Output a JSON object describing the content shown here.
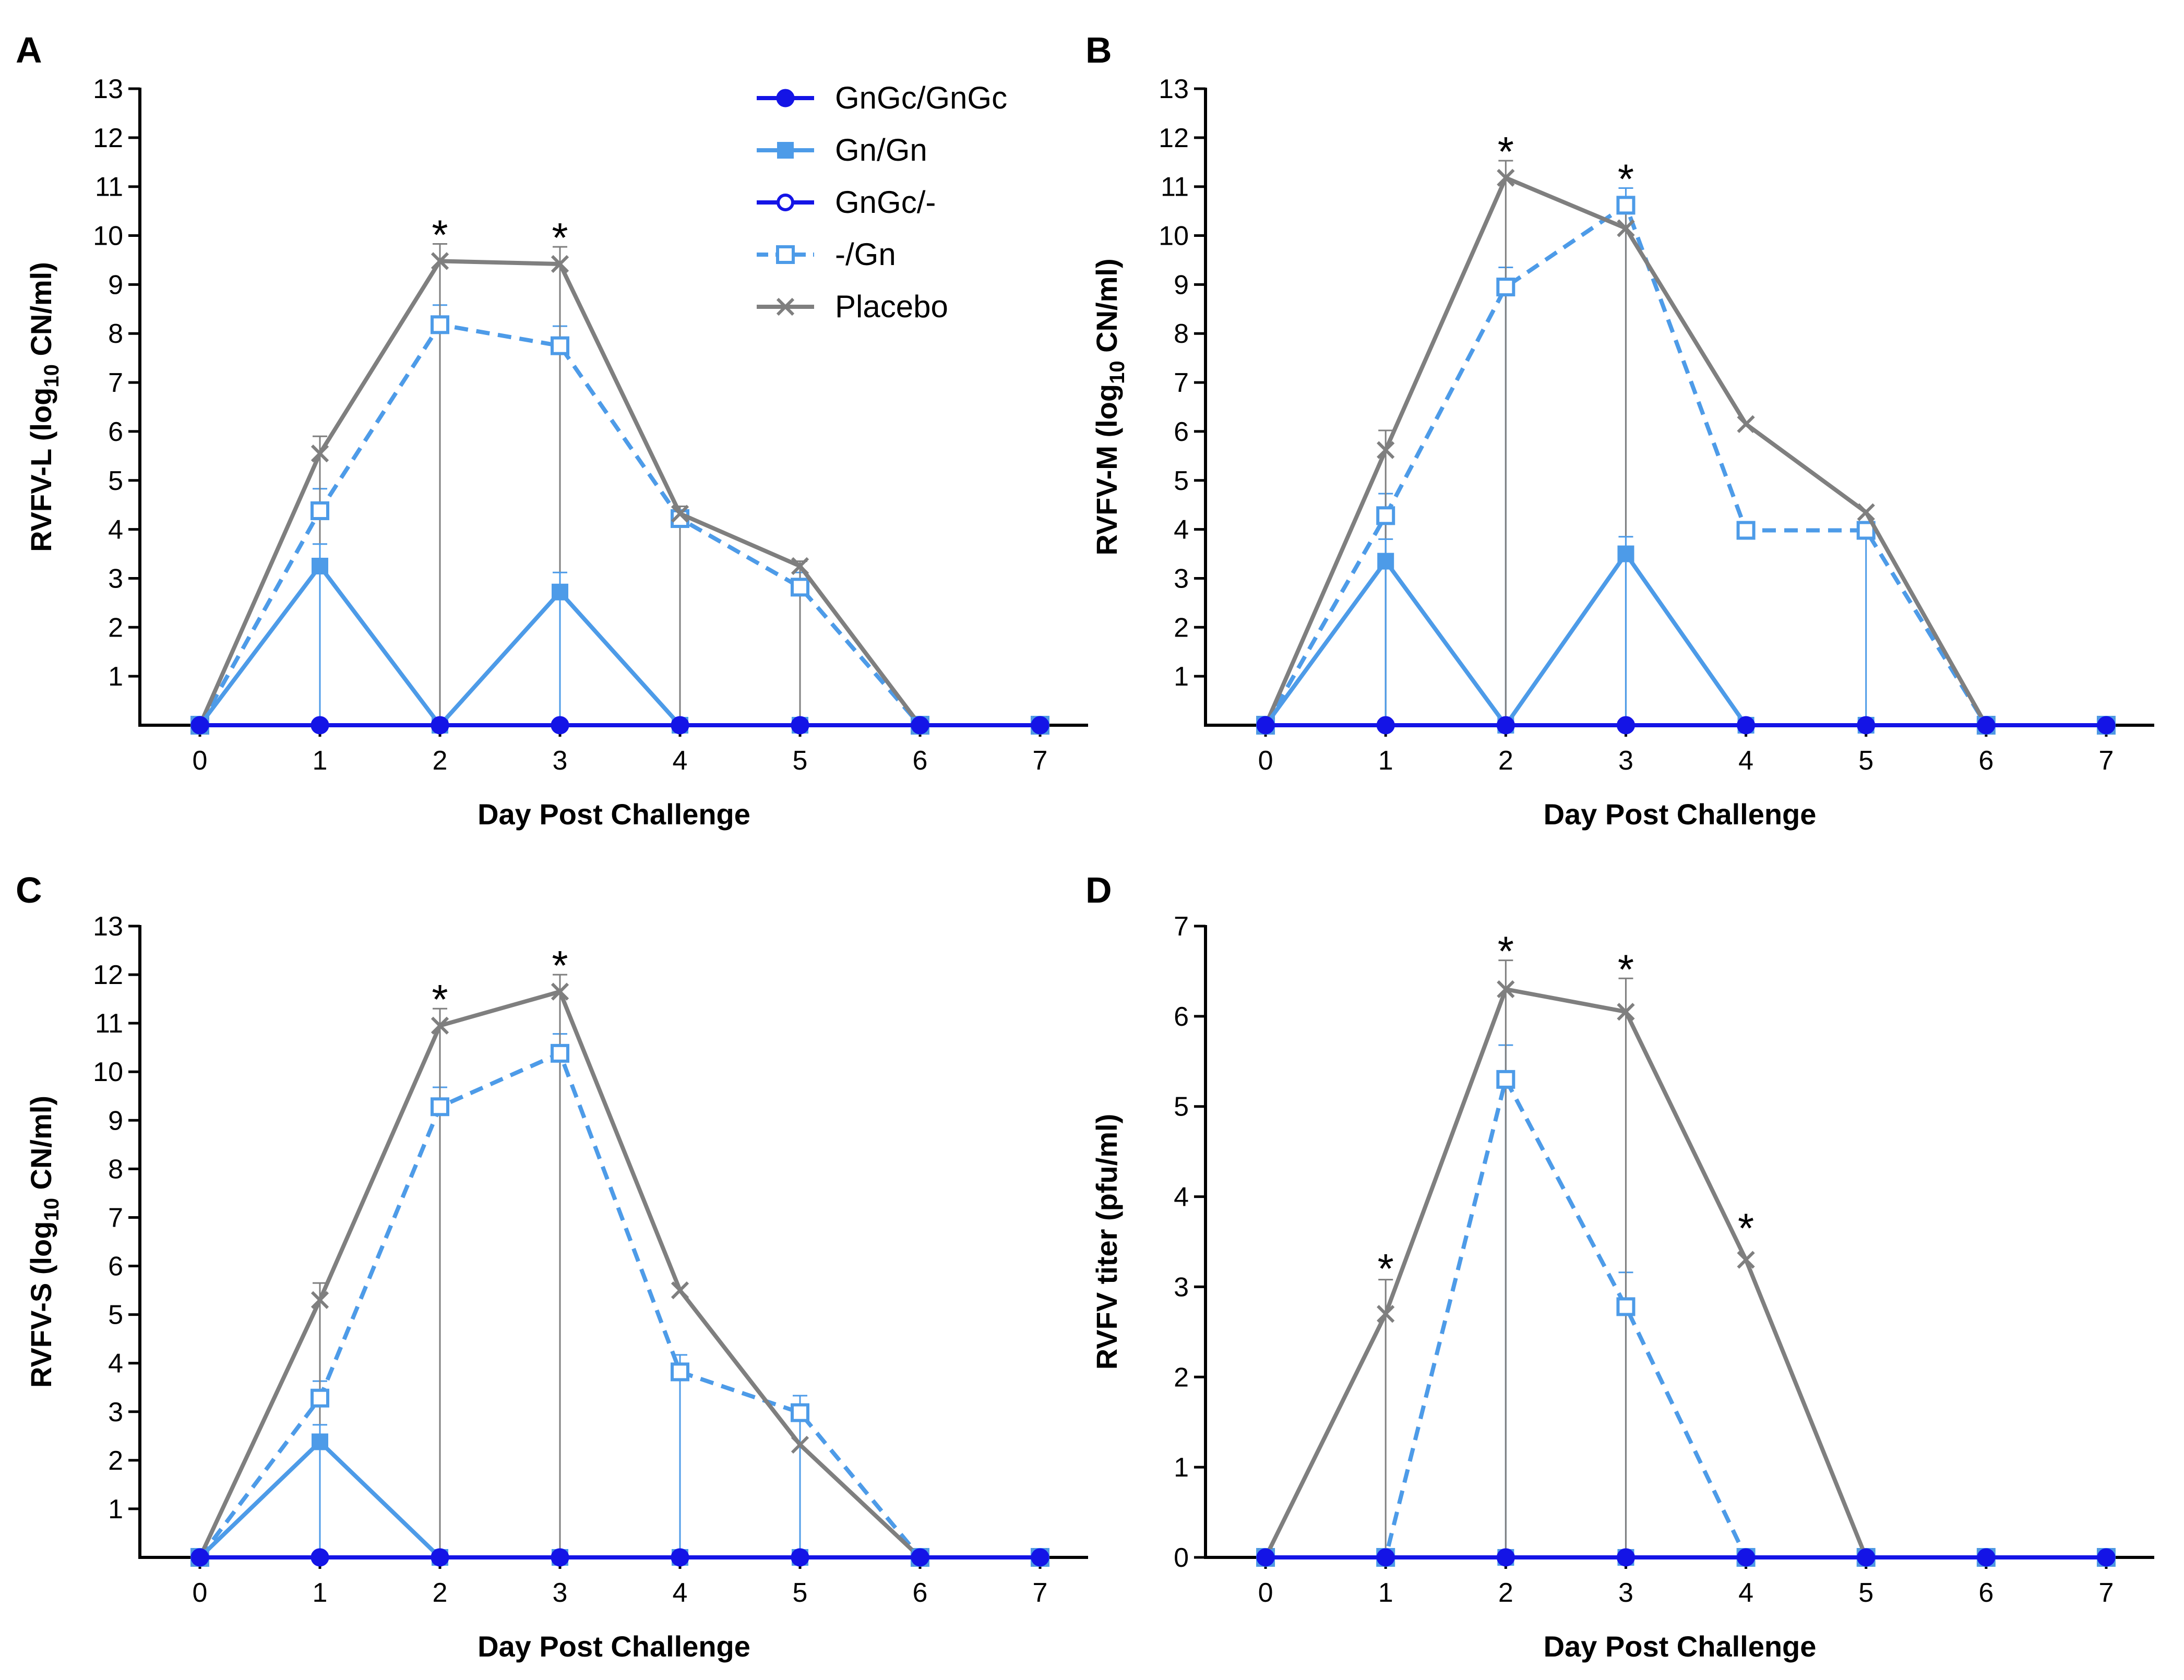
{
  "legend": [
    {
      "name": "GnGc/GnGc",
      "color": "#1414e6",
      "marker": "filled-circle",
      "dash": false
    },
    {
      "name": "Gn/Gn",
      "color": "#4d9be8",
      "marker": "filled-square",
      "dash": false
    },
    {
      "name": "GnGc/-",
      "color": "#1414e6",
      "marker": "open-circle",
      "dash": false
    },
    {
      "name": "-/Gn",
      "color": "#4d9be8",
      "marker": "open-square",
      "dash": true
    },
    {
      "name": "Placebo",
      "color": "#7f7f7f",
      "marker": "cross",
      "dash": false
    }
  ],
  "chart_data": [
    {
      "type": "line",
      "panel": "A",
      "xlabel": "Day Post Challenge",
      "ylabel_main": "RVFV-L (log",
      "ylabel_sub": "10",
      "ylabel_end": " CN/ml)",
      "x": [
        0,
        1,
        2,
        3,
        4,
        5,
        6,
        7
      ],
      "xlim": [
        -0.5,
        7.4
      ],
      "ylim": [
        0,
        13
      ],
      "yticks": [
        1,
        2,
        3,
        4,
        5,
        6,
        7,
        8,
        9,
        10,
        11,
        12,
        13
      ],
      "series": [
        {
          "name": "GnGc/GnGc",
          "values": [
            0,
            0,
            0,
            0,
            0,
            0,
            0,
            0
          ],
          "errors": [
            0,
            0,
            0,
            0,
            0,
            0,
            0,
            0
          ]
        },
        {
          "name": "Gn/Gn",
          "values": [
            0,
            3.25,
            0,
            2.72,
            0,
            0,
            0,
            0
          ],
          "errors": [
            0,
            0.45,
            0,
            0.4,
            0,
            0,
            0,
            0
          ]
        },
        {
          "name": "GnGc/-",
          "values": [
            0,
            0,
            0,
            0,
            0,
            0,
            0,
            0
          ],
          "errors": [
            0,
            0,
            0,
            0,
            0,
            0,
            0,
            0
          ]
        },
        {
          "name": "-/Gn",
          "values": [
            0,
            4.38,
            8.18,
            7.75,
            4.22,
            2.82,
            0,
            0
          ],
          "errors": [
            0,
            0.45,
            0.4,
            0.4,
            0.25,
            0.3,
            0,
            0
          ]
        },
        {
          "name": "Placebo",
          "values": [
            0,
            5.55,
            9.48,
            9.42,
            4.32,
            3.25,
            0,
            0
          ],
          "errors": [
            0,
            0.35,
            0.35,
            0.35,
            0.15,
            0.1,
            0,
            0
          ]
        }
      ],
      "significance": [
        {
          "x": 2,
          "y": 9.83,
          "label": "*"
        },
        {
          "x": 3,
          "y": 9.77,
          "label": "*"
        }
      ]
    },
    {
      "type": "line",
      "panel": "B",
      "xlabel": "Day Post Challenge",
      "ylabel_main": "RVFV-M (log",
      "ylabel_sub": "10",
      "ylabel_end": " CN/ml)",
      "x": [
        0,
        1,
        2,
        3,
        4,
        5,
        6,
        7
      ],
      "xlim": [
        -0.5,
        7.4
      ],
      "ylim": [
        0,
        13
      ],
      "yticks": [
        1,
        2,
        3,
        4,
        5,
        6,
        7,
        8,
        9,
        10,
        11,
        12,
        13
      ],
      "series": [
        {
          "name": "GnGc/GnGc",
          "values": [
            0,
            0,
            0,
            0,
            0,
            0,
            0,
            0
          ],
          "errors": [
            0,
            0,
            0,
            0,
            0,
            0,
            0,
            0
          ]
        },
        {
          "name": "Gn/Gn",
          "values": [
            0,
            3.35,
            0,
            3.5,
            0,
            0,
            0,
            0
          ],
          "errors": [
            0,
            0.45,
            0,
            0.35,
            0,
            0,
            0,
            0
          ]
        },
        {
          "name": "GnGc/-",
          "values": [
            0,
            0,
            0,
            0,
            0,
            0,
            0,
            0
          ],
          "errors": [
            0,
            0,
            0,
            0,
            0,
            0,
            0,
            0
          ]
        },
        {
          "name": "-/Gn",
          "values": [
            0,
            4.28,
            8.95,
            10.62,
            3.98,
            3.98,
            0,
            0
          ],
          "errors": [
            0,
            0.45,
            0.4,
            0.35,
            0,
            0.15,
            0,
            0
          ]
        },
        {
          "name": "Placebo",
          "values": [
            0,
            5.62,
            11.18,
            10.15,
            6.15,
            4.35,
            0,
            0
          ],
          "errors": [
            0,
            0.4,
            0.35,
            0.3,
            0,
            0,
            0,
            0
          ]
        }
      ],
      "significance": [
        {
          "x": 2,
          "y": 11.53,
          "label": "*"
        },
        {
          "x": 3,
          "y": 10.97,
          "label": "*"
        }
      ]
    },
    {
      "type": "line",
      "panel": "C",
      "xlabel": "Day Post Challenge",
      "ylabel_main": "RVFV-S (log",
      "ylabel_sub": "10",
      "ylabel_end": " CN/ml)",
      "x": [
        0,
        1,
        2,
        3,
        4,
        5,
        6,
        7
      ],
      "xlim": [
        -0.5,
        7.4
      ],
      "ylim": [
        0,
        13
      ],
      "yticks": [
        1,
        2,
        3,
        4,
        5,
        6,
        7,
        8,
        9,
        10,
        11,
        12,
        13
      ],
      "series": [
        {
          "name": "GnGc/GnGc",
          "values": [
            0,
            0,
            0,
            0,
            0,
            0,
            0,
            0
          ],
          "errors": [
            0,
            0,
            0,
            0,
            0,
            0,
            0,
            0
          ]
        },
        {
          "name": "Gn/Gn",
          "values": [
            0,
            2.38,
            0,
            0,
            0,
            0,
            0,
            0
          ],
          "errors": [
            0,
            0.35,
            0,
            0,
            0,
            0,
            0,
            0
          ]
        },
        {
          "name": "GnGc/-",
          "values": [
            0,
            0,
            0,
            0,
            0,
            0,
            0,
            0
          ],
          "errors": [
            0,
            0,
            0,
            0,
            0,
            0,
            0,
            0
          ]
        },
        {
          "name": "-/Gn",
          "values": [
            0,
            3.28,
            9.28,
            10.38,
            3.82,
            2.98,
            0,
            0
          ],
          "errors": [
            0,
            0.35,
            0.4,
            0.4,
            0.35,
            0.35,
            0,
            0
          ]
        },
        {
          "name": "Placebo",
          "values": [
            0,
            5.3,
            10.95,
            11.65,
            5.5,
            2.32,
            0,
            0
          ],
          "errors": [
            0,
            0.35,
            0.35,
            0.35,
            0,
            0,
            0,
            0
          ]
        }
      ],
      "significance": [
        {
          "x": 2,
          "y": 11.3,
          "label": "*"
        },
        {
          "x": 3,
          "y": 12.0,
          "label": "*"
        }
      ]
    },
    {
      "type": "line",
      "panel": "D",
      "xlabel": "Day Post Challenge",
      "ylabel_main": "RVFV titer (pfu/ml)",
      "ylabel_sub": "",
      "ylabel_end": "",
      "x": [
        0,
        1,
        2,
        3,
        4,
        5,
        6,
        7
      ],
      "xlim": [
        -0.5,
        7.4
      ],
      "ylim": [
        0,
        7
      ],
      "yticks": [
        0,
        1,
        2,
        3,
        4,
        5,
        6,
        7
      ],
      "series": [
        {
          "name": "GnGc/GnGc",
          "values": [
            0,
            0,
            0,
            0,
            0,
            0,
            0,
            0
          ],
          "errors": [
            0,
            0,
            0,
            0,
            0,
            0,
            0,
            0
          ]
        },
        {
          "name": "Gn/Gn",
          "values": [
            0,
            0,
            0,
            0,
            0,
            0,
            0,
            0
          ],
          "errors": [
            0,
            0,
            0,
            0,
            0,
            0,
            0,
            0
          ]
        },
        {
          "name": "GnGc/-",
          "values": [
            0,
            0,
            0,
            0,
            0,
            0,
            0,
            0
          ],
          "errors": [
            0,
            0,
            0,
            0,
            0,
            0,
            0,
            0
          ]
        },
        {
          "name": "-/Gn",
          "values": [
            0,
            0,
            5.3,
            2.78,
            0,
            0,
            0,
            0
          ],
          "errors": [
            0,
            0,
            0.38,
            0.38,
            0,
            0,
            0,
            0
          ]
        },
        {
          "name": "Placebo",
          "values": [
            0,
            2.7,
            6.3,
            6.05,
            3.3,
            0,
            0,
            0
          ],
          "errors": [
            0,
            0.38,
            0.32,
            0.37,
            0,
            0,
            0,
            0
          ]
        }
      ],
      "significance": [
        {
          "x": 1,
          "y": 3.1,
          "label": "*"
        },
        {
          "x": 2,
          "y": 6.62,
          "label": "*"
        },
        {
          "x": 3,
          "y": 6.42,
          "label": "*"
        },
        {
          "x": 4,
          "y": 3.55,
          "label": "*"
        }
      ]
    }
  ]
}
